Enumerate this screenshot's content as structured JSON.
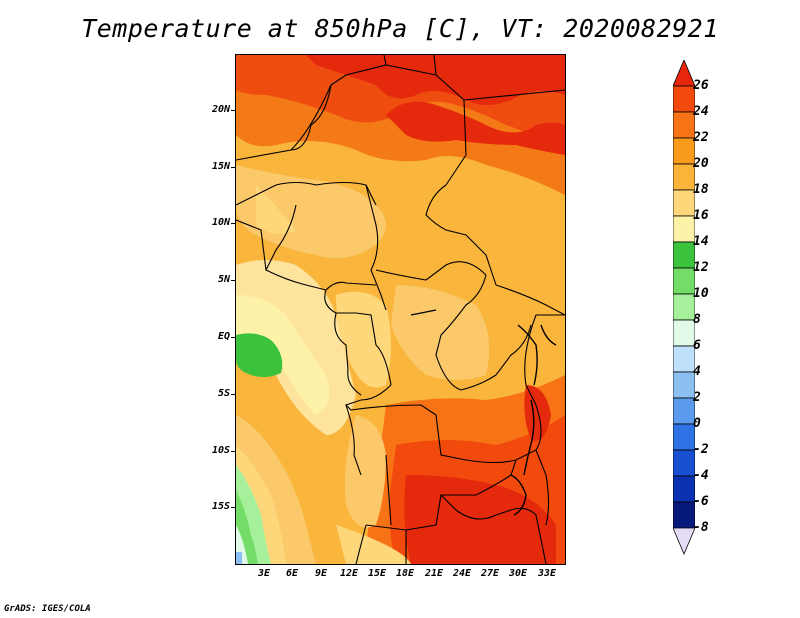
{
  "title": "Temperature at 850hPa [C], VT: 2020082921",
  "footer": "GrADS: IGES/COLA",
  "axes": {
    "lat_labels": [
      "20N",
      "15N",
      "10N",
      "5N",
      "EQ",
      "5S",
      "10S",
      "15S"
    ],
    "lon_labels": [
      "3E",
      "6E",
      "9E",
      "12E",
      "15E",
      "18E",
      "21E",
      "24E",
      "27E",
      "30E",
      "33E"
    ]
  },
  "colorbar": {
    "levels": [
      "26",
      "24",
      "22",
      "20",
      "18",
      "16",
      "14",
      "12",
      "10",
      "8",
      "6",
      "4",
      "2",
      "0",
      "-2",
      "-4",
      "-6",
      "-8"
    ],
    "colors": [
      "#e7260b",
      "#f24a0c",
      "#f77316",
      "#f89a1c",
      "#fbb43a",
      "#fdd77a",
      "#fdf2a8",
      "#3cc33e",
      "#74dd68",
      "#a6f09c",
      "#e1fbe9",
      "#bfe1fb",
      "#8dc0f2",
      "#5a9bed",
      "#2f72e6",
      "#1750d0",
      "#0c31b0",
      "#071a7c"
    ]
  }
}
